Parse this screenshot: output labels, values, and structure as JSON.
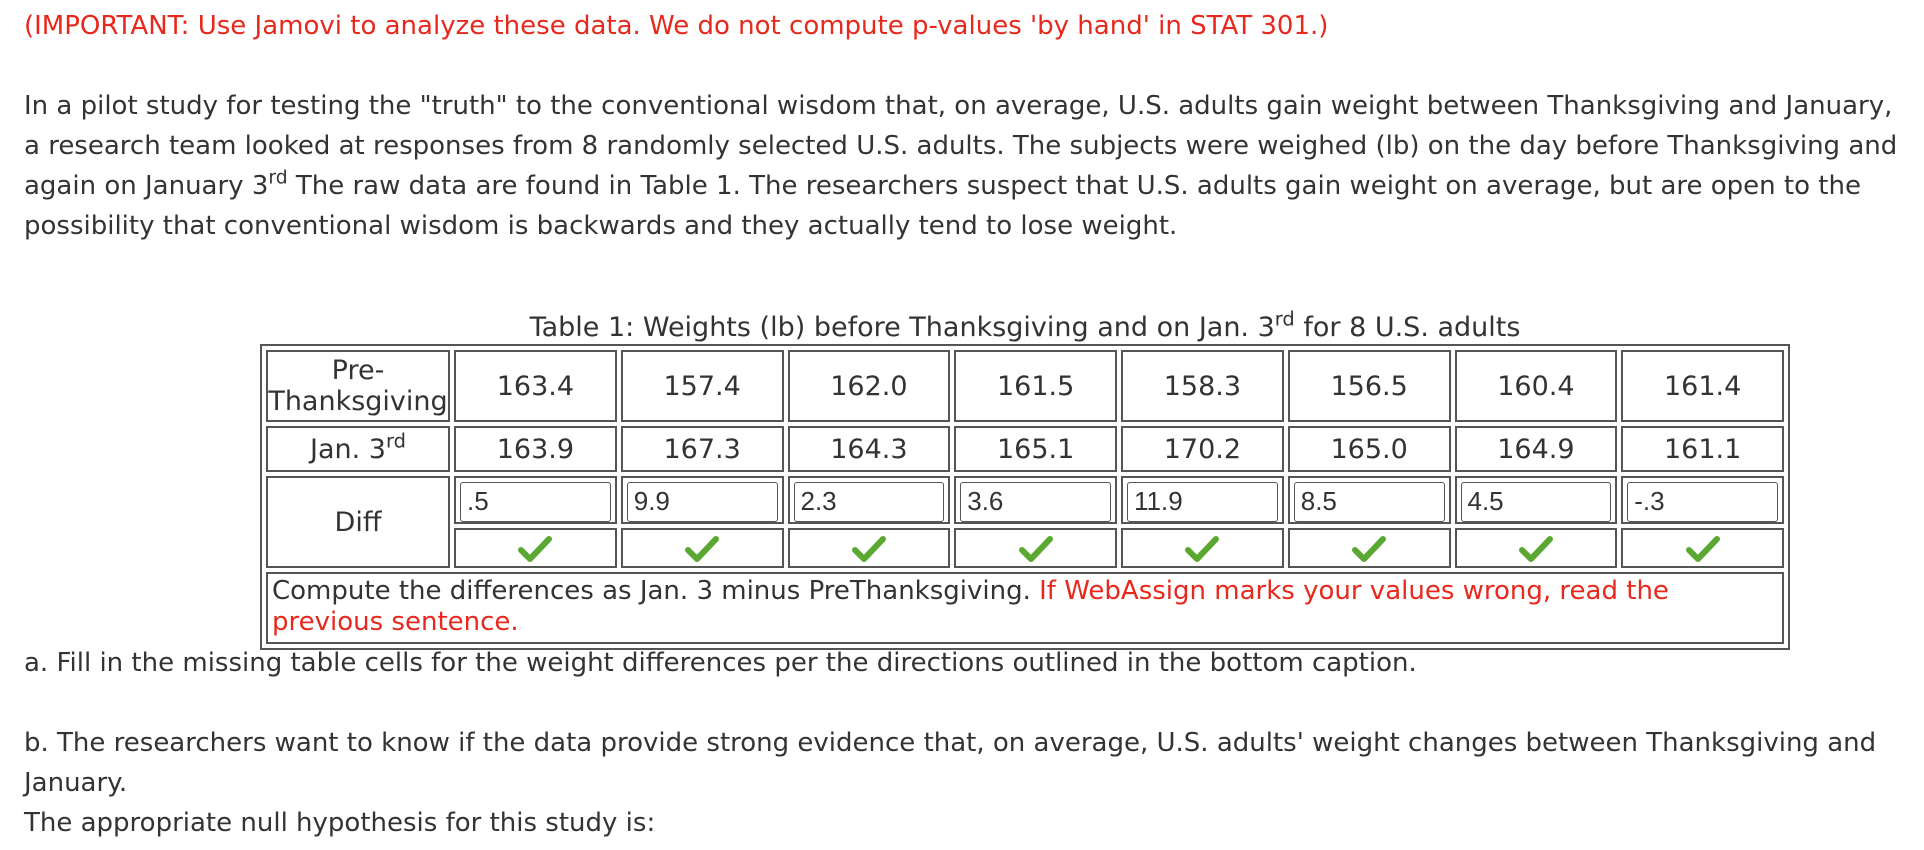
{
  "important_note": "(IMPORTANT: Use Jamovi to analyze these data. We do not compute p-values 'by hand' in STAT 301.)",
  "intro": {
    "before_sup": "In a pilot study for testing the \"truth\" to the conventional wisdom that, on average, U.S. adults gain weight between Thanksgiving and January, a research team looked at responses from 8 randomly selected U.S. adults. The subjects were weighed (lb) on the day before Thanksgiving and again on January 3",
    "sup": "rd",
    "after_sup": " The raw data are found in Table 1. The researchers suspect that U.S. adults gain weight on average, but are open to the possibility that conventional wisdom is backwards and they actually tend to lose weight."
  },
  "table": {
    "caption_before": "Table 1: Weights (lb) before Thanksgiving and on Jan. 3",
    "caption_sup": "rd",
    "caption_after": " for 8 U.S. adults",
    "pre_label_line1": "Pre-",
    "pre_label_line2": "Thanksgiving",
    "jan_label": "Jan. 3",
    "jan_label_sup": "rd",
    "diff_label": "Diff",
    "pre": [
      "163.4",
      "157.4",
      "162.0",
      "161.5",
      "158.3",
      "156.5",
      "160.4",
      "161.4"
    ],
    "jan": [
      "163.9",
      "167.3",
      "164.3",
      "165.1",
      "170.2",
      "165.0",
      "164.9",
      "161.1"
    ],
    "diff": [
      ".5",
      "9.9",
      "2.3",
      "3.6",
      "11.9",
      "8.5",
      "4.5",
      "-.3"
    ],
    "check_color": "#5aa832",
    "footer_text": "Compute the differences as Jan. 3 minus PreThanksgiving. ",
    "footer_warning": "If WebAssign marks your values wrong, read the previous sentence."
  },
  "question_a": "a. Fill in the missing table cells for the weight differences per the directions outlined in the bottom caption.",
  "question_b": "b. The researchers want to know if the data provide strong evidence that, on average, U.S. adults' weight changes between Thanksgiving and January.",
  "question_b_prompt": "The appropriate null hypothesis for this study is:",
  "colors": {
    "accent_red": "#e8281c",
    "text": "#333333",
    "check_green": "#5aa832"
  }
}
